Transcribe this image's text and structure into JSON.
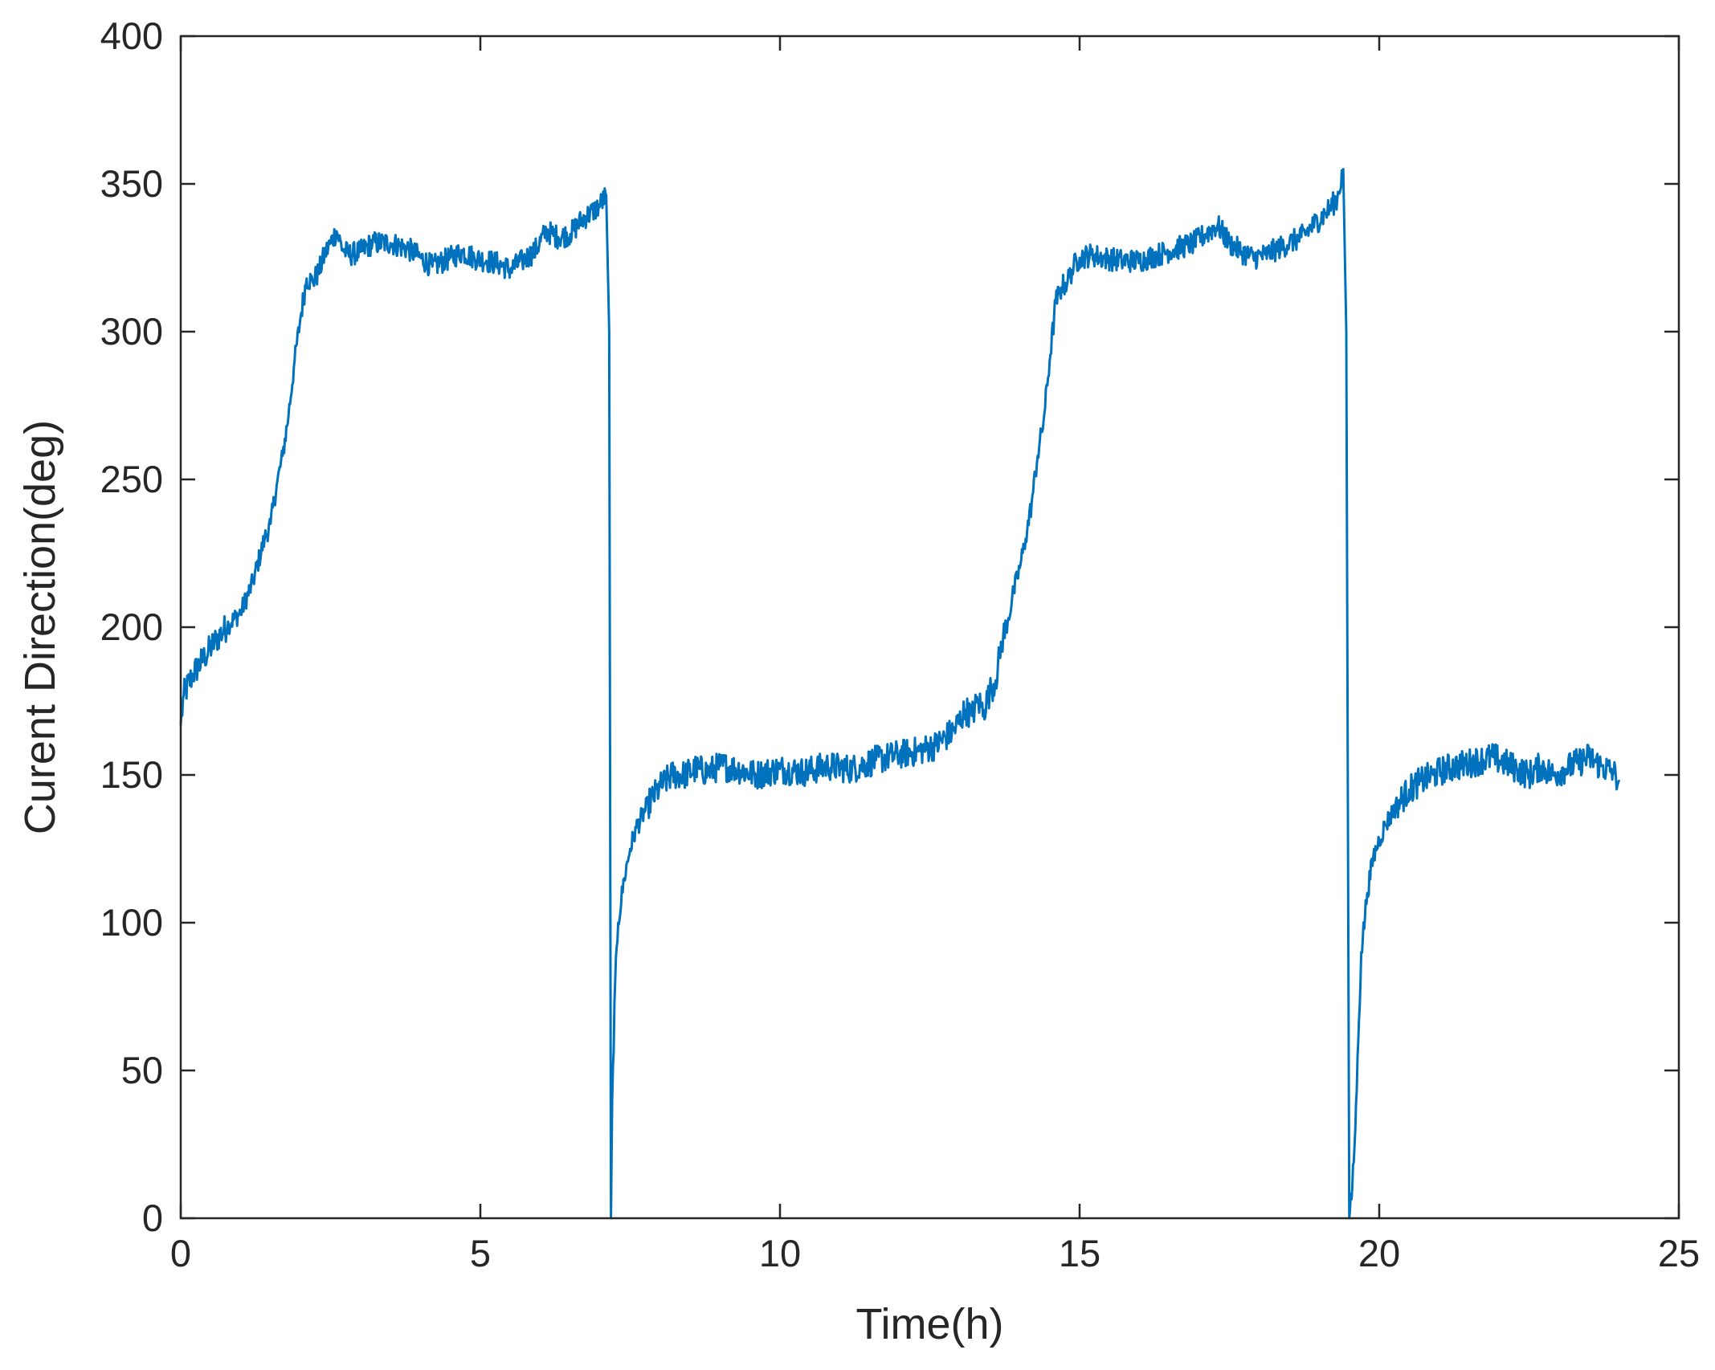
{
  "chart_data": {
    "type": "line",
    "title": "",
    "xlabel": "Time(h)",
    "ylabel": "Curent Direction(deg)",
    "xlim": [
      0,
      25
    ],
    "ylim": [
      0,
      400
    ],
    "xticks": [
      0,
      5,
      10,
      15,
      20,
      25
    ],
    "yticks": [
      0,
      50,
      100,
      150,
      200,
      250,
      300,
      350,
      400
    ],
    "xtick_labels": [
      "0",
      "5",
      "10",
      "15",
      "20",
      "25"
    ],
    "ytick_labels": [
      "0",
      "50",
      "100",
      "150",
      "200",
      "250",
      "300",
      "350",
      "400"
    ],
    "grid": false,
    "box": true,
    "ticks_direction": "in",
    "series": [
      {
        "color": "#0072BD",
        "x": [
          0,
          0.05,
          0.2,
          0.4,
          0.6,
          0.8,
          1.0,
          1.2,
          1.4,
          1.5,
          1.6,
          1.7,
          1.8,
          1.9,
          2.0,
          2.1,
          2.2,
          2.3,
          2.4,
          2.5,
          2.6,
          2.7,
          2.8,
          3.0,
          3.2,
          3.5,
          3.8,
          4.0,
          4.2,
          4.5,
          4.7,
          4.9,
          5.1,
          5.3,
          5.5,
          5.7,
          5.9,
          6.1,
          6.3,
          6.5,
          6.7,
          6.9,
          7.0,
          7.1,
          7.15,
          7.18,
          7.2,
          7.25,
          7.3,
          7.4,
          7.5,
          7.6,
          7.8,
          8.0,
          8.2,
          8.4,
          8.6,
          8.8,
          9.0,
          9.3,
          9.6,
          10.0,
          10.4,
          10.8,
          11.2,
          11.6,
          12.0,
          12.3,
          12.6,
          12.9,
          13.1,
          13.2,
          13.3,
          13.4,
          13.5,
          13.6,
          13.7,
          13.8,
          13.9,
          14.0,
          14.1,
          14.2,
          14.3,
          14.4,
          14.5,
          14.6,
          14.7,
          14.8,
          14.9,
          15.0,
          15.2,
          15.4,
          15.7,
          16.0,
          16.3,
          16.6,
          16.9,
          17.1,
          17.3,
          17.5,
          17.7,
          17.9,
          18.1,
          18.3,
          18.5,
          18.7,
          18.9,
          19.1,
          19.3,
          19.4,
          19.45,
          19.5,
          19.55,
          19.6,
          19.65,
          19.7,
          19.8,
          19.9,
          20.0,
          20.1,
          20.3,
          20.5,
          20.7,
          20.9,
          21.1,
          21.3,
          21.5,
          21.7,
          21.9,
          22.1,
          22.3,
          22.5,
          22.7,
          22.9,
          23.1,
          23.3,
          23.5,
          23.7,
          23.9,
          24.0
        ],
        "y": [
          167,
          177,
          184,
          190,
          196,
          201,
          205,
          215,
          230,
          235,
          248,
          258,
          272,
          290,
          305,
          318,
          317,
          320,
          326,
          330,
          334,
          328,
          326,
          327,
          330,
          330,
          328,
          325,
          322,
          325,
          327,
          325,
          324,
          323,
          321,
          324,
          327,
          334,
          332,
          333,
          338,
          341,
          343,
          346,
          300,
          0,
          40,
          80,
          100,
          115,
          125,
          132,
          140,
          146,
          150,
          150,
          152,
          151,
          153,
          152,
          150,
          152,
          151,
          153,
          152,
          155,
          157,
          158,
          160,
          165,
          172,
          170,
          175,
          172,
          178,
          182,
          195,
          202,
          212,
          220,
          230,
          242,
          258,
          270,
          290,
          310,
          315,
          317,
          322,
          325,
          326,
          325,
          324,
          324,
          326,
          328,
          330,
          333,
          336,
          330,
          327,
          325,
          326,
          328,
          330,
          332,
          336,
          340,
          345,
          355,
          300,
          0,
          10,
          30,
          60,
          90,
          110,
          122,
          128,
          133,
          140,
          145,
          148,
          150,
          152,
          153,
          154,
          155,
          156,
          154,
          152,
          150,
          153,
          150,
          152,
          154,
          156,
          153,
          151,
          148
        ]
      }
    ]
  }
}
